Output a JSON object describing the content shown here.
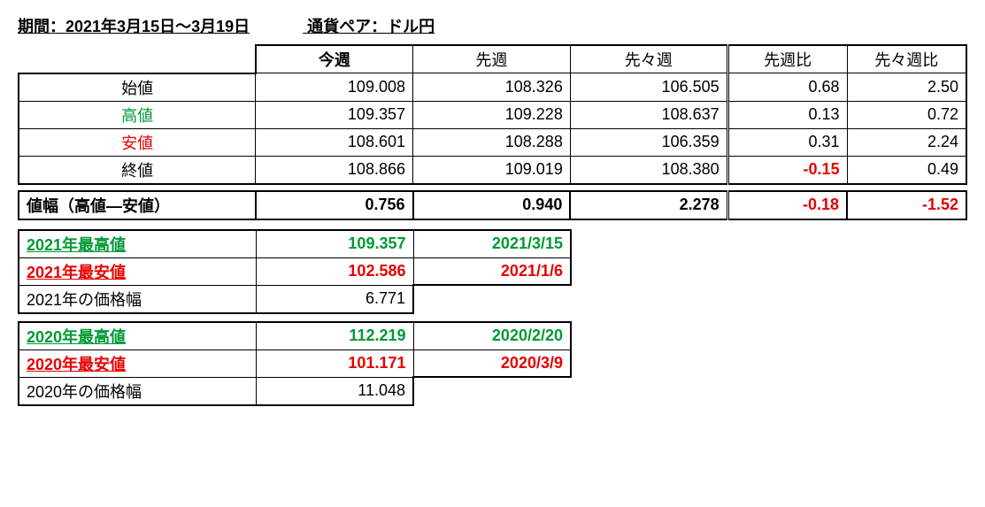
{
  "header": {
    "period_label": "期間：2021年3月15日～3月19日",
    "pair_label": "通貨ペア：ドル円"
  },
  "columns": {
    "this_week": "今週",
    "last_week": "先週",
    "two_weeks_ago": "先々週",
    "vs_last": "先週比",
    "vs_two": "先々週比"
  },
  "rows": {
    "open": {
      "label": "始値",
      "this": "109.008",
      "last": "108.326",
      "two": "106.505",
      "d1": "0.68",
      "d2": "2.50"
    },
    "high": {
      "label": "高値",
      "this": "109.357",
      "last": "109.228",
      "two": "108.637",
      "d1": "0.13",
      "d2": "0.72"
    },
    "low": {
      "label": "安値",
      "this": "108.601",
      "last": "108.288",
      "two": "106.359",
      "d1": "0.31",
      "d2": "2.24"
    },
    "close": {
      "label": "終値",
      "this": "108.866",
      "last": "109.019",
      "two": "108.380",
      "d1": "-0.15",
      "d2": "0.49"
    }
  },
  "range": {
    "label": "値幅（高値―安値）",
    "this": "0.756",
    "last": "0.940",
    "two": "2.278",
    "d1": "-0.18",
    "d2": "-1.52"
  },
  "year2021": {
    "high_label": "2021年最高値",
    "high_val": "109.357",
    "high_date": "2021/3/15",
    "low_label": "2021年最安値",
    "low_val": "102.586",
    "low_date": "2021/1/6",
    "range_label": "2021年の価格幅",
    "range_val": "6.771"
  },
  "year2020": {
    "high_label": "2020年最高値",
    "high_val": "112.219",
    "high_date": "2020/2/20",
    "low_label": "2020年最安値",
    "low_val": "101.171",
    "low_date": "2020/3/9",
    "range_label": "2020年の価格幅",
    "range_val": "11.048"
  },
  "colors": {
    "green": "#009933",
    "red": "#e60000"
  }
}
